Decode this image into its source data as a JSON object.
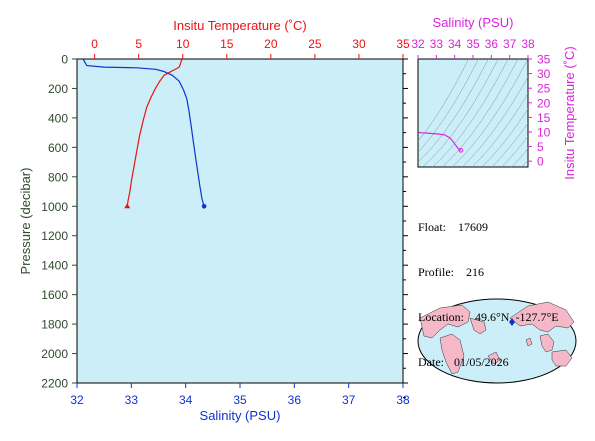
{
  "chart_data": [
    {
      "type": "line",
      "top_axis_title": "Insitu Temperature (˚C)",
      "xlabel": "Salinity (PSU)",
      "ylabel": "Pressure (decibar)",
      "pressure_range": [
        0,
        2200
      ],
      "pressure_ticks": [
        0,
        200,
        400,
        600,
        800,
        1000,
        1200,
        1400,
        1600,
        1800,
        2000,
        2200
      ],
      "temperature_range": [
        -2,
        35
      ],
      "temperature_ticks": [
        0,
        5,
        10,
        15,
        20,
        25,
        30,
        35
      ],
      "salinity_range": [
        32,
        38
      ],
      "salinity_ticks": [
        32,
        33,
        34,
        35,
        36,
        37,
        38
      ],
      "grid": false,
      "colors": {
        "temperature": "#ee1111",
        "salinity": "#1133cc",
        "plot_bg": "#cceef8",
        "pressure_axis": "#2f4a2f"
      },
      "series": [
        {
          "quantity": "temperature",
          "points": [
            [
              9.9,
              5
            ],
            [
              9.8,
              20
            ],
            [
              9.7,
              40
            ],
            [
              9.6,
              55
            ],
            [
              9.3,
              65
            ],
            [
              9.0,
              75
            ],
            [
              8.5,
              90
            ],
            [
              7.9,
              110
            ],
            [
              7.4,
              150
            ],
            [
              6.9,
              200
            ],
            [
              6.4,
              260
            ],
            [
              5.9,
              330
            ],
            [
              5.5,
              420
            ],
            [
              5.1,
              520
            ],
            [
              4.8,
              620
            ],
            [
              4.5,
              720
            ],
            [
              4.2,
              820
            ],
            [
              4.0,
              900
            ],
            [
              3.8,
              960
            ],
            [
              3.7,
              1000
            ]
          ]
        },
        {
          "quantity": "salinity",
          "points": [
            [
              32.12,
              5
            ],
            [
              32.15,
              25
            ],
            [
              32.18,
              45
            ],
            [
              32.5,
              55
            ],
            [
              33.1,
              60
            ],
            [
              33.45,
              70
            ],
            [
              33.6,
              85
            ],
            [
              33.75,
              110
            ],
            [
              33.88,
              150
            ],
            [
              33.96,
              210
            ],
            [
              34.02,
              270
            ],
            [
              34.06,
              350
            ],
            [
              34.1,
              450
            ],
            [
              34.14,
              560
            ],
            [
              34.18,
              660
            ],
            [
              34.22,
              760
            ],
            [
              34.26,
              860
            ],
            [
              34.3,
              950
            ],
            [
              34.34,
              1000
            ]
          ]
        }
      ]
    },
    {
      "type": "scatter",
      "title": "Salinity (PSU)",
      "ylabel": "Insitu Temperature (˚C)",
      "xlim": [
        32,
        38
      ],
      "ylim": [
        -2,
        35
      ],
      "x_ticks": [
        32,
        33,
        34,
        35,
        36,
        37,
        38
      ],
      "y_ticks": [
        0,
        5,
        10,
        15,
        20,
        25,
        30,
        35
      ],
      "colors": {
        "curve": "#dd22dd",
        "bg": "#cceef8",
        "axis": "#dd22dd"
      },
      "points": [
        [
          32.05,
          9.9
        ],
        [
          32.12,
          9.8
        ],
        [
          32.2,
          9.7
        ],
        [
          32.5,
          9.6
        ],
        [
          33.1,
          9.3
        ],
        [
          33.45,
          9.0
        ],
        [
          33.6,
          8.5
        ],
        [
          33.75,
          7.9
        ],
        [
          33.88,
          7.0
        ],
        [
          33.96,
          6.3
        ],
        [
          34.04,
          5.6
        ],
        [
          34.12,
          4.9
        ],
        [
          34.2,
          4.3
        ],
        [
          34.26,
          3.9
        ],
        [
          34.34,
          3.7
        ]
      ]
    }
  ],
  "info": {
    "float_label": "Float:",
    "float_value": "17609",
    "profile_label": "Profile:",
    "profile_value": "216",
    "location_label": "Location:",
    "location_value": "49.6°N  -127.7°E",
    "date_label": "Date:",
    "date_value": "01/05/2026"
  },
  "map": {
    "marker_color": "#1133cc",
    "land_color": "#f4b8c8",
    "ocean_color": "#cceef8"
  }
}
